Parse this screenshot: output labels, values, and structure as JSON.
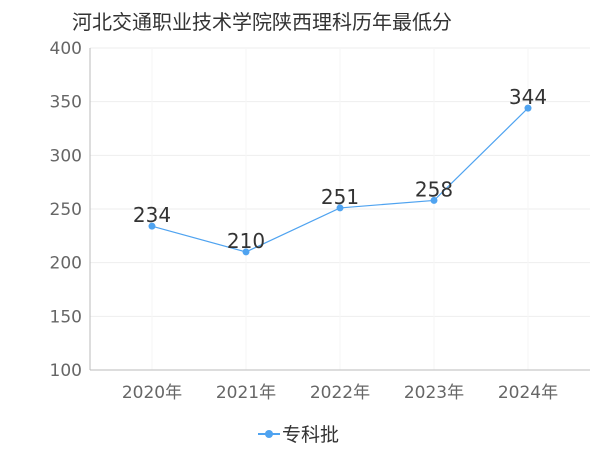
{
  "chart_data": {
    "type": "line",
    "title": "河北交通职业技术学院陕西理科历年最低分",
    "categories": [
      "2020年",
      "2021年",
      "2022年",
      "2023年",
      "2024年"
    ],
    "series": [
      {
        "name": "专科批",
        "values": [
          234,
          210,
          251,
          258,
          344
        ]
      }
    ],
    "ylim": [
      100,
      400
    ],
    "yticks": [
      100,
      150,
      200,
      250,
      300,
      350,
      400
    ],
    "grid": true,
    "legend_position": "bottom",
    "colors": {
      "series": "#4fa3f0",
      "grid": "#eeeeee",
      "axis": "#bbbbbb"
    }
  }
}
